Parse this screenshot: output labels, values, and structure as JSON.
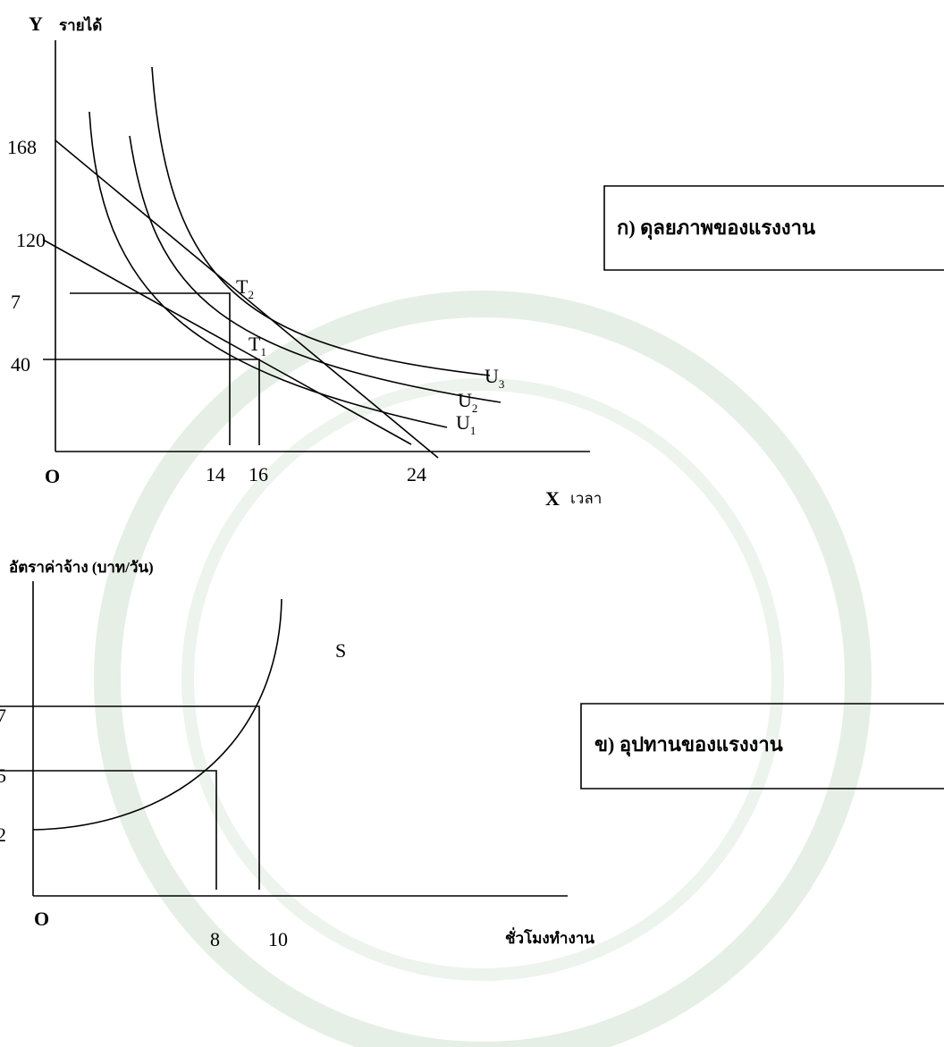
{
  "top": {
    "y_axis": "Y",
    "y_label": "รายได้",
    "y_ticks": [
      "168",
      "120",
      "7",
      "40"
    ],
    "points": [
      {
        "main": "T",
        "sub": "2"
      },
      {
        "main": "T",
        "sub": "1"
      }
    ],
    "curves": [
      {
        "main": "U",
        "sub": "3"
      },
      {
        "main": "U",
        "sub": "2"
      },
      {
        "main": "U",
        "sub": "1"
      }
    ],
    "origin": "O",
    "x_ticks": [
      "14",
      "16",
      "24"
    ],
    "x_axis": "X",
    "x_label": "เวลา",
    "caption": "ก) ดุลยภาพของแรงงาน"
  },
  "bottom": {
    "y_label": "อัตราค่าจ้าง (บาท/วัน)",
    "curve": "S",
    "y_ticks": [
      "7",
      "5",
      "2"
    ],
    "origin": "O",
    "x_ticks": [
      "8",
      "10"
    ],
    "x_label": "ชั่วโมงทำงาน",
    "caption": "ข) อุปทานของแรงงาน"
  }
}
